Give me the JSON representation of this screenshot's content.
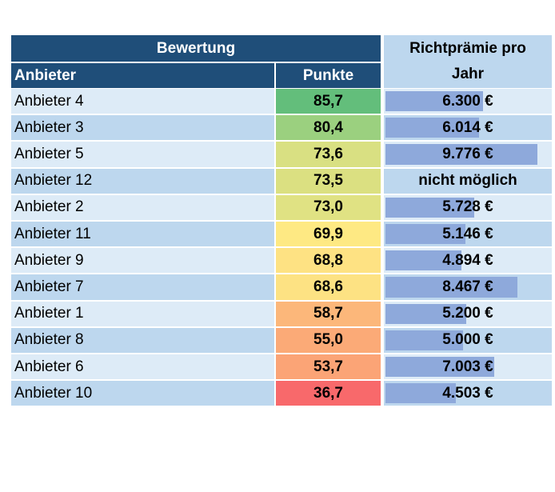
{
  "header": {
    "group": "Bewertung",
    "name": "Anbieter",
    "points": "Punkte",
    "premium": "Richtprämie pro Jahr"
  },
  "bar_color": "#8ea9db",
  "rows": [
    {
      "name": "Anbieter 4",
      "points": "85,7",
      "color": "#63be7b",
      "premium": {
        "value": 6300,
        "label": "6.300 €"
      }
    },
    {
      "name": "Anbieter 3",
      "points": "80,4",
      "color": "#9bd07f",
      "premium": {
        "value": 6014,
        "label": "6.014 €"
      }
    },
    {
      "name": "Anbieter 5",
      "points": "73,6",
      "color": "#d9e082",
      "premium": {
        "value": 9776,
        "label": "9.776 €"
      }
    },
    {
      "name": "Anbieter 12",
      "points": "73,5",
      "color": "#dbe081",
      "premium": {
        "value": null,
        "label": "nicht möglich"
      }
    },
    {
      "name": "Anbieter 2",
      "points": "73,0",
      "color": "#e0e283",
      "premium": {
        "value": 5728,
        "label": "5.728 €"
      }
    },
    {
      "name": "Anbieter 11",
      "points": "69,9",
      "color": "#fee983",
      "premium": {
        "value": 5146,
        "label": "5.146 €"
      }
    },
    {
      "name": "Anbieter 9",
      "points": "68,8",
      "color": "#fee283",
      "premium": {
        "value": 4894,
        "label": "4.894 €"
      }
    },
    {
      "name": "Anbieter 7",
      "points": "68,6",
      "color": "#fde283",
      "premium": {
        "value": 8467,
        "label": "8.467 €"
      }
    },
    {
      "name": "Anbieter 1",
      "points": "58,7",
      "color": "#fcb77a",
      "premium": {
        "value": 5200,
        "label": "5.200 €"
      }
    },
    {
      "name": "Anbieter 8",
      "points": "55,0",
      "color": "#fbaa77",
      "premium": {
        "value": 5000,
        "label": "5.000 €"
      }
    },
    {
      "name": "Anbieter 6",
      "points": "53,7",
      "color": "#fba476",
      "premium": {
        "value": 7003,
        "label": "7.003 €"
      }
    },
    {
      "name": "Anbieter 10",
      "points": "36,7",
      "color": "#f8696b",
      "premium": {
        "value": 4503,
        "label": "4.503 €"
      }
    }
  ]
}
